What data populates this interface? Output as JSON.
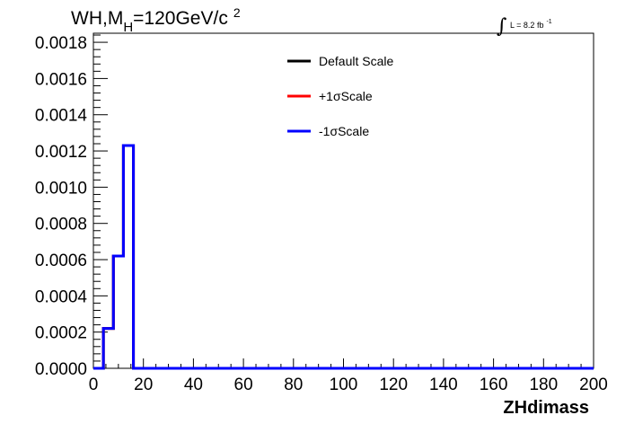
{
  "title": {
    "main": "WH,M",
    "sub": "H",
    "rest": "=120GeV/c",
    "sup": "2"
  },
  "lumi": {
    "integral_glyph": "∫",
    "text": "L = 8.2 fb",
    "exponent": "-1"
  },
  "legend": [
    {
      "label": "Default Scale",
      "color": "#000000"
    },
    {
      "label": "+1σScale",
      "color": "#ff0000"
    },
    {
      "label": "-1σScale",
      "color": "#0000ff"
    }
  ],
  "chart_data": {
    "type": "line",
    "xlabel": "ZHdimass",
    "ylabel": "",
    "xlim": [
      0,
      200
    ],
    "ylim": [
      0,
      0.00185
    ],
    "x_ticks": [
      0,
      20,
      40,
      60,
      80,
      100,
      120,
      140,
      160,
      180,
      200
    ],
    "x_tick_labels": [
      "0",
      "20",
      "40",
      "60",
      "80",
      "100",
      "120",
      "140",
      "160",
      "180",
      "200"
    ],
    "y_ticks": [
      0,
      0.0002,
      0.0004,
      0.0006,
      0.0008,
      0.001,
      0.0012,
      0.0014,
      0.0016,
      0.0018
    ],
    "y_tick_labels": [
      "0.0000",
      "0.0002",
      "0.0004",
      "0.0006",
      "0.0008",
      "0.0010",
      "0.0012",
      "0.0014",
      "0.0016",
      "0.0018"
    ],
    "grid": false,
    "legend_position": "top-center",
    "histogram_style": "step",
    "bin_edges": [
      0,
      4,
      8,
      12,
      16,
      200
    ],
    "series": [
      {
        "name": "Default Scale",
        "color": "#000000",
        "values": [
          0,
          0.00022,
          0.00062,
          0.00123,
          0
        ]
      },
      {
        "name": "+1σScale",
        "color": "#ff0000",
        "values": [
          0,
          0.00022,
          0.00062,
          0.00123,
          0
        ]
      },
      {
        "name": "-1σScale",
        "color": "#0000ff",
        "values": [
          0,
          0.00022,
          0.00062,
          0.00123,
          0
        ]
      }
    ]
  }
}
